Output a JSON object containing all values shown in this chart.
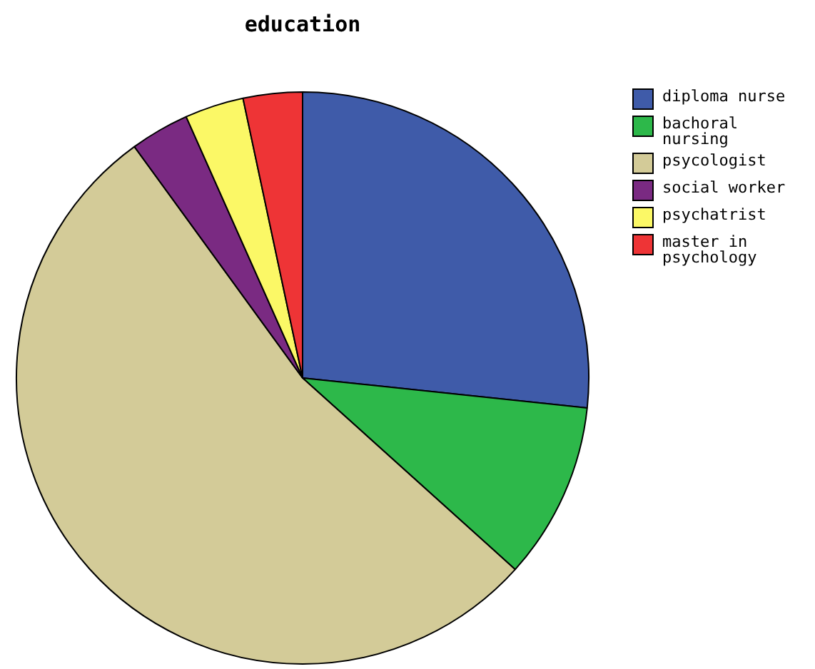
{
  "chart_data": {
    "type": "pie",
    "title": "education",
    "categories": [
      "diploma nurse",
      "bachoral nursing",
      "psycologist",
      "social worker",
      "psychatrist",
      "master in psychology"
    ],
    "values": [
      26.67,
      10,
      53.33,
      3.33,
      3.33,
      3.34
    ],
    "colors": [
      "#3f5ba9",
      "#2db84a",
      "#d3cb98",
      "#7a2a82",
      "#fbf866",
      "#ee3436"
    ],
    "legend": "right"
  }
}
